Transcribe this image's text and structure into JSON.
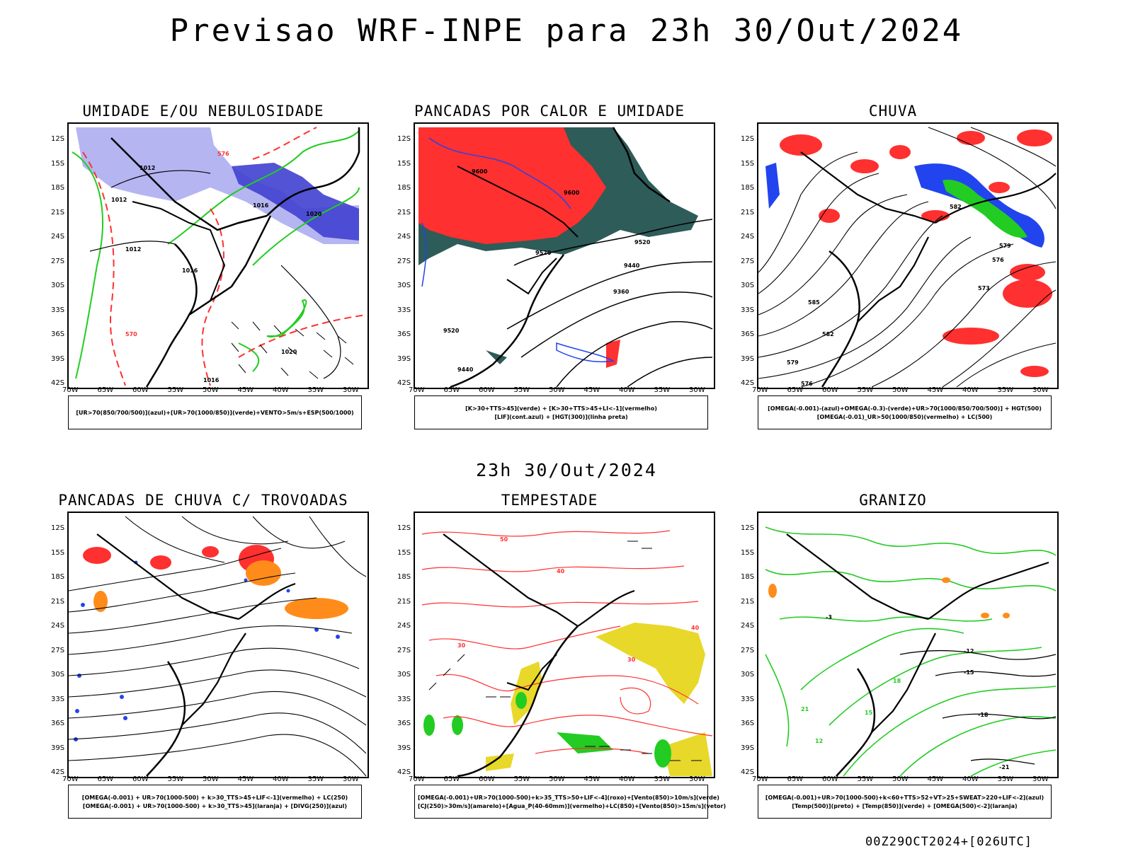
{
  "header": {
    "title": "Previsao WRF-INPE  para 23h 30/Out/2024"
  },
  "middle_date": "23h 30/Out/2024",
  "footer": "00Z29OCT2024+[026UTC]",
  "axes": {
    "lat_labels": [
      "12S",
      "15S",
      "18S",
      "21S",
      "24S",
      "27S",
      "30S",
      "33S",
      "36S",
      "39S",
      "42S"
    ],
    "lon_labels": [
      "70W",
      "65W",
      "60W",
      "55W",
      "50W",
      "45W",
      "40W",
      "35W",
      "30W"
    ]
  },
  "panels": [
    {
      "id": "umidade",
      "title": "UMIDADE E/OU NEBULOSIDADE",
      "legend": [
        "[UR>70(850/700/500)](azul)+[UR>70(1000/850)](verde)+VENTO>5m/s+ESP(500/1000)"
      ],
      "contour_labels": [
        "1012",
        "1012",
        "1016",
        "1020",
        "1016",
        "1020",
        "1012",
        "1016",
        "576",
        "570"
      ]
    },
    {
      "id": "pancadas-calor",
      "title": "PANCADAS POR CALOR E UMIDADE",
      "legend": [
        "[K>30+TTS>45](verde) + [K>30+TTS>45+LI<-1](vermelho)",
        "[LIF](cont.azul) + [HGT(300)](linha preta)"
      ],
      "contour_labels": [
        "9600",
        "9600",
        "9520",
        "9440",
        "9360",
        "9520",
        "9440",
        "9520"
      ]
    },
    {
      "id": "chuva",
      "title": "CHUVA",
      "legend": [
        "[OMEGA(-0.001)-(azul)+OMEGA(-0.3)-(verde)+UR>70(1000/850/700/500)] + HGT(500)",
        "[OMEGA(-0.01)_UR>50(1000/850)(vermelho) + LC(500)"
      ],
      "contour_labels": [
        "582",
        "579",
        "576",
        "573",
        "585",
        "582",
        "579",
        "576"
      ]
    },
    {
      "id": "pancadas-trovoadas",
      "title": "PANCADAS DE CHUVA C/ TROVOADAS",
      "legend": [
        "[OMEGA(-0.001) + UR>70(1000-500) + k>30_TTS>45+LIF<-1](vermelho) + LC(250)",
        "[OMEGA(-0.001) + UR>70(1000-500) + k>30_TTS>45](laranja) + [DIVG(250)](azul)"
      ],
      "contour_labels": []
    },
    {
      "id": "tempestade",
      "title": "TEMPESTADE",
      "legend": [
        "[OMEGA(-0.001)+UR>70(1000-500)+k>35_TTS>50+LIF<-4](roxo)+[Vento(850)>10m/s](verde)",
        "[CJ(250)>30m/s](amarelo)+[Agua_P(40-60mm)](vermelho)+LC(850)+[Vento(850)>15m/s](vetor)"
      ],
      "contour_labels": [
        "50",
        "40",
        "30",
        "40",
        "30"
      ]
    },
    {
      "id": "granizo",
      "title": "GRANIZO",
      "legend": [
        "[OMEGA(-0.001)+UR>70(1000-500)+k<60+TTS>52+VT>25+SWEAT>220+LIF<-2](azul)",
        "[Temp(500)](preto) + [Temp(850)](verde) + [OMEGA(500)<-2](laranja)"
      ],
      "contour_labels": [
        "-12",
        "-15",
        "-18",
        "-21",
        "12",
        "15",
        "18",
        "21",
        "-3"
      ]
    }
  ],
  "colors": {
    "humid_blue": "#a8a8f0",
    "deep_blue": "#4040d0",
    "green": "#22cc22",
    "red": "#ff3030",
    "dark_teal": "#2e5c58",
    "orange": "#ff8c1a",
    "yellow": "#e8d82a",
    "purple": "#9c2cc8",
    "blue_line": "#2244ee"
  }
}
